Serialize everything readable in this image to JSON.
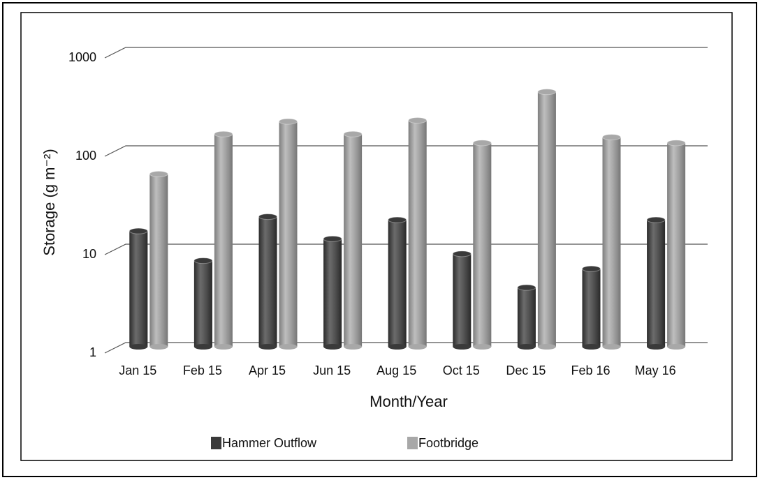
{
  "chart_data": {
    "type": "bar",
    "x_label": "Month/Year",
    "y_label": "Storage (g m⁻²)",
    "categories": [
      "Jan 15",
      "Feb 15",
      "Apr 15",
      "Jun 15",
      "Aug 15",
      "Oct 15",
      "Dec 15",
      "Feb 16",
      "May 16"
    ],
    "series": [
      {
        "name": "Hammer Outflow",
        "color": "#3a3a3a",
        "values": [
          15,
          7.5,
          21,
          12.5,
          19.5,
          8.8,
          4,
          6.2,
          19.5
        ]
      },
      {
        "name": "Footbridge",
        "color": "#a8a8a8",
        "values": [
          57,
          145,
          195,
          145,
          200,
          118,
          390,
          135,
          118
        ]
      }
    ],
    "ylim": [
      1,
      1000
    ],
    "yticks": [
      1,
      10,
      100,
      1000
    ],
    "log_scale": true,
    "grid": true
  }
}
